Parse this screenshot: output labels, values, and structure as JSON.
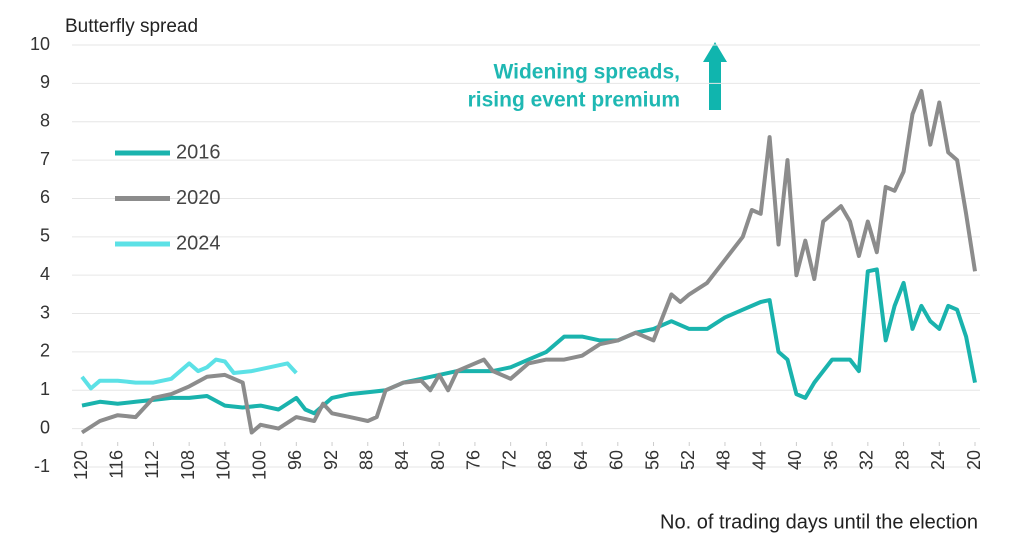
{
  "chart_data": {
    "type": "line",
    "title": "Butterfly spread",
    "xlabel": "No. of trading days until the election",
    "annotation": [
      "Widening spreads,",
      "rising event premium"
    ],
    "xlim": [
      120,
      20
    ],
    "xticks": [
      120,
      116,
      112,
      108,
      104,
      100,
      96,
      92,
      88,
      84,
      80,
      76,
      72,
      68,
      64,
      60,
      56,
      52,
      48,
      44,
      40,
      36,
      32,
      28,
      24,
      20
    ],
    "ylim": [
      -1,
      10
    ],
    "yticks": [
      -1,
      0,
      1,
      2,
      3,
      4,
      5,
      6,
      7,
      8,
      9,
      10
    ],
    "grid": true,
    "legend": "upper left",
    "series": [
      {
        "name": "2016",
        "color": "#1ab3ad",
        "x": [
          120,
          118,
          116,
          114,
          112,
          110,
          108,
          106,
          104,
          102,
          100,
          98,
          96,
          95,
          94,
          92,
          90,
          88,
          86,
          84,
          82,
          80,
          78,
          76,
          74,
          72,
          70,
          68,
          66,
          64,
          62,
          60,
          58,
          56,
          54,
          52,
          50,
          48,
          46,
          44,
          43,
          42,
          41,
          40,
          39,
          38,
          36,
          34,
          33,
          32,
          31,
          30,
          29,
          28,
          27,
          26,
          25,
          24,
          23,
          22,
          21,
          20
        ],
        "values": [
          0.6,
          0.7,
          0.65,
          0.7,
          0.75,
          0.8,
          0.8,
          0.85,
          0.6,
          0.55,
          0.6,
          0.5,
          0.8,
          0.5,
          0.4,
          0.8,
          0.9,
          0.95,
          1.0,
          1.2,
          1.3,
          1.4,
          1.5,
          1.5,
          1.5,
          1.6,
          1.8,
          2.0,
          2.4,
          2.4,
          2.3,
          2.3,
          2.5,
          2.6,
          2.8,
          2.6,
          2.6,
          2.9,
          3.1,
          3.3,
          3.35,
          2.0,
          1.8,
          0.9,
          0.8,
          1.2,
          1.8,
          1.8,
          1.5,
          4.1,
          4.15,
          2.3,
          3.2,
          3.8,
          2.6,
          3.2,
          2.8,
          2.6,
          3.2,
          3.1,
          2.4,
          1.2
        ]
      },
      {
        "name": "2020",
        "color": "#8c8c8c",
        "x": [
          120,
          118,
          116,
          114,
          112,
          110,
          108,
          106,
          104,
          102,
          101,
          100,
          98,
          96,
          94,
          93,
          92,
          90,
          88,
          87,
          86,
          84,
          82,
          81,
          80,
          79,
          78,
          76,
          75,
          74,
          72,
          70,
          68,
          66,
          64,
          62,
          60,
          58,
          56,
          54,
          53,
          52,
          50,
          48,
          46,
          45,
          44,
          43,
          42,
          41,
          40,
          39,
          38,
          37,
          36,
          35,
          34,
          33,
          32,
          31,
          30,
          29,
          28,
          27,
          26,
          25,
          24,
          23,
          22,
          21,
          20
        ],
        "values": [
          -0.1,
          0.2,
          0.35,
          0.3,
          0.8,
          0.9,
          1.1,
          1.35,
          1.4,
          1.2,
          -0.1,
          0.1,
          0.0,
          0.3,
          0.2,
          0.65,
          0.4,
          0.3,
          0.2,
          0.3,
          1.0,
          1.2,
          1.25,
          1.0,
          1.4,
          1.0,
          1.5,
          1.7,
          1.8,
          1.5,
          1.3,
          1.7,
          1.8,
          1.8,
          1.9,
          2.2,
          2.3,
          2.5,
          2.3,
          3.5,
          3.3,
          3.5,
          3.8,
          4.4,
          5.0,
          5.7,
          5.6,
          7.6,
          4.8,
          7.0,
          4.0,
          4.9,
          3.9,
          5.4,
          5.6,
          5.8,
          5.4,
          4.5,
          5.4,
          4.6,
          6.3,
          6.2,
          6.7,
          8.2,
          8.8,
          7.4,
          8.5,
          7.2,
          7.0,
          5.6,
          4.1
        ]
      },
      {
        "name": "2024",
        "color": "#5ce1e6",
        "x": [
          120,
          119,
          118,
          116,
          114,
          112,
          110,
          108,
          107,
          106,
          105,
          104,
          103,
          101,
          99,
          97,
          96
        ],
        "values": [
          1.35,
          1.05,
          1.25,
          1.25,
          1.2,
          1.2,
          1.3,
          1.7,
          1.5,
          1.6,
          1.8,
          1.75,
          1.45,
          1.5,
          1.6,
          1.7,
          1.45
        ]
      }
    ]
  }
}
